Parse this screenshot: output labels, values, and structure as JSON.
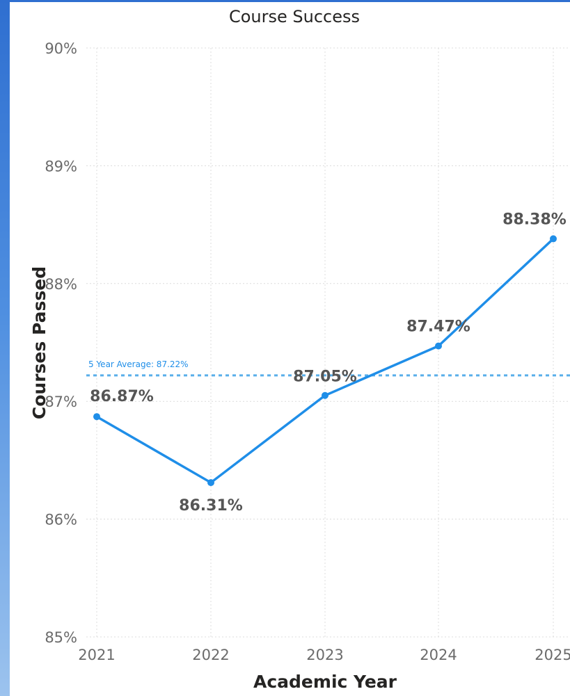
{
  "chart_data": {
    "type": "line",
    "title": "Course Success",
    "xlabel": "Academic Year",
    "ylabel": "Courses Passed",
    "categories": [
      "2021",
      "2022",
      "2023",
      "2024",
      "2025"
    ],
    "y_ticks": [
      "85%",
      "86%",
      "87%",
      "88%",
      "89%",
      "90%"
    ],
    "ylim": [
      85,
      90
    ],
    "series": [
      {
        "values": [
          86.87,
          86.31,
          87.05,
          87.47,
          88.38
        ],
        "labels": [
          "86.87%",
          "86.31%",
          "87.05%",
          "87.47%",
          "88.38%"
        ],
        "color": "#1f8ee8"
      }
    ],
    "reference_line": {
      "label": "5 Year Average: 87.22%",
      "value": 87.22,
      "color": "#5aafea",
      "style": "dotted"
    },
    "grid": true,
    "legend": "none"
  }
}
